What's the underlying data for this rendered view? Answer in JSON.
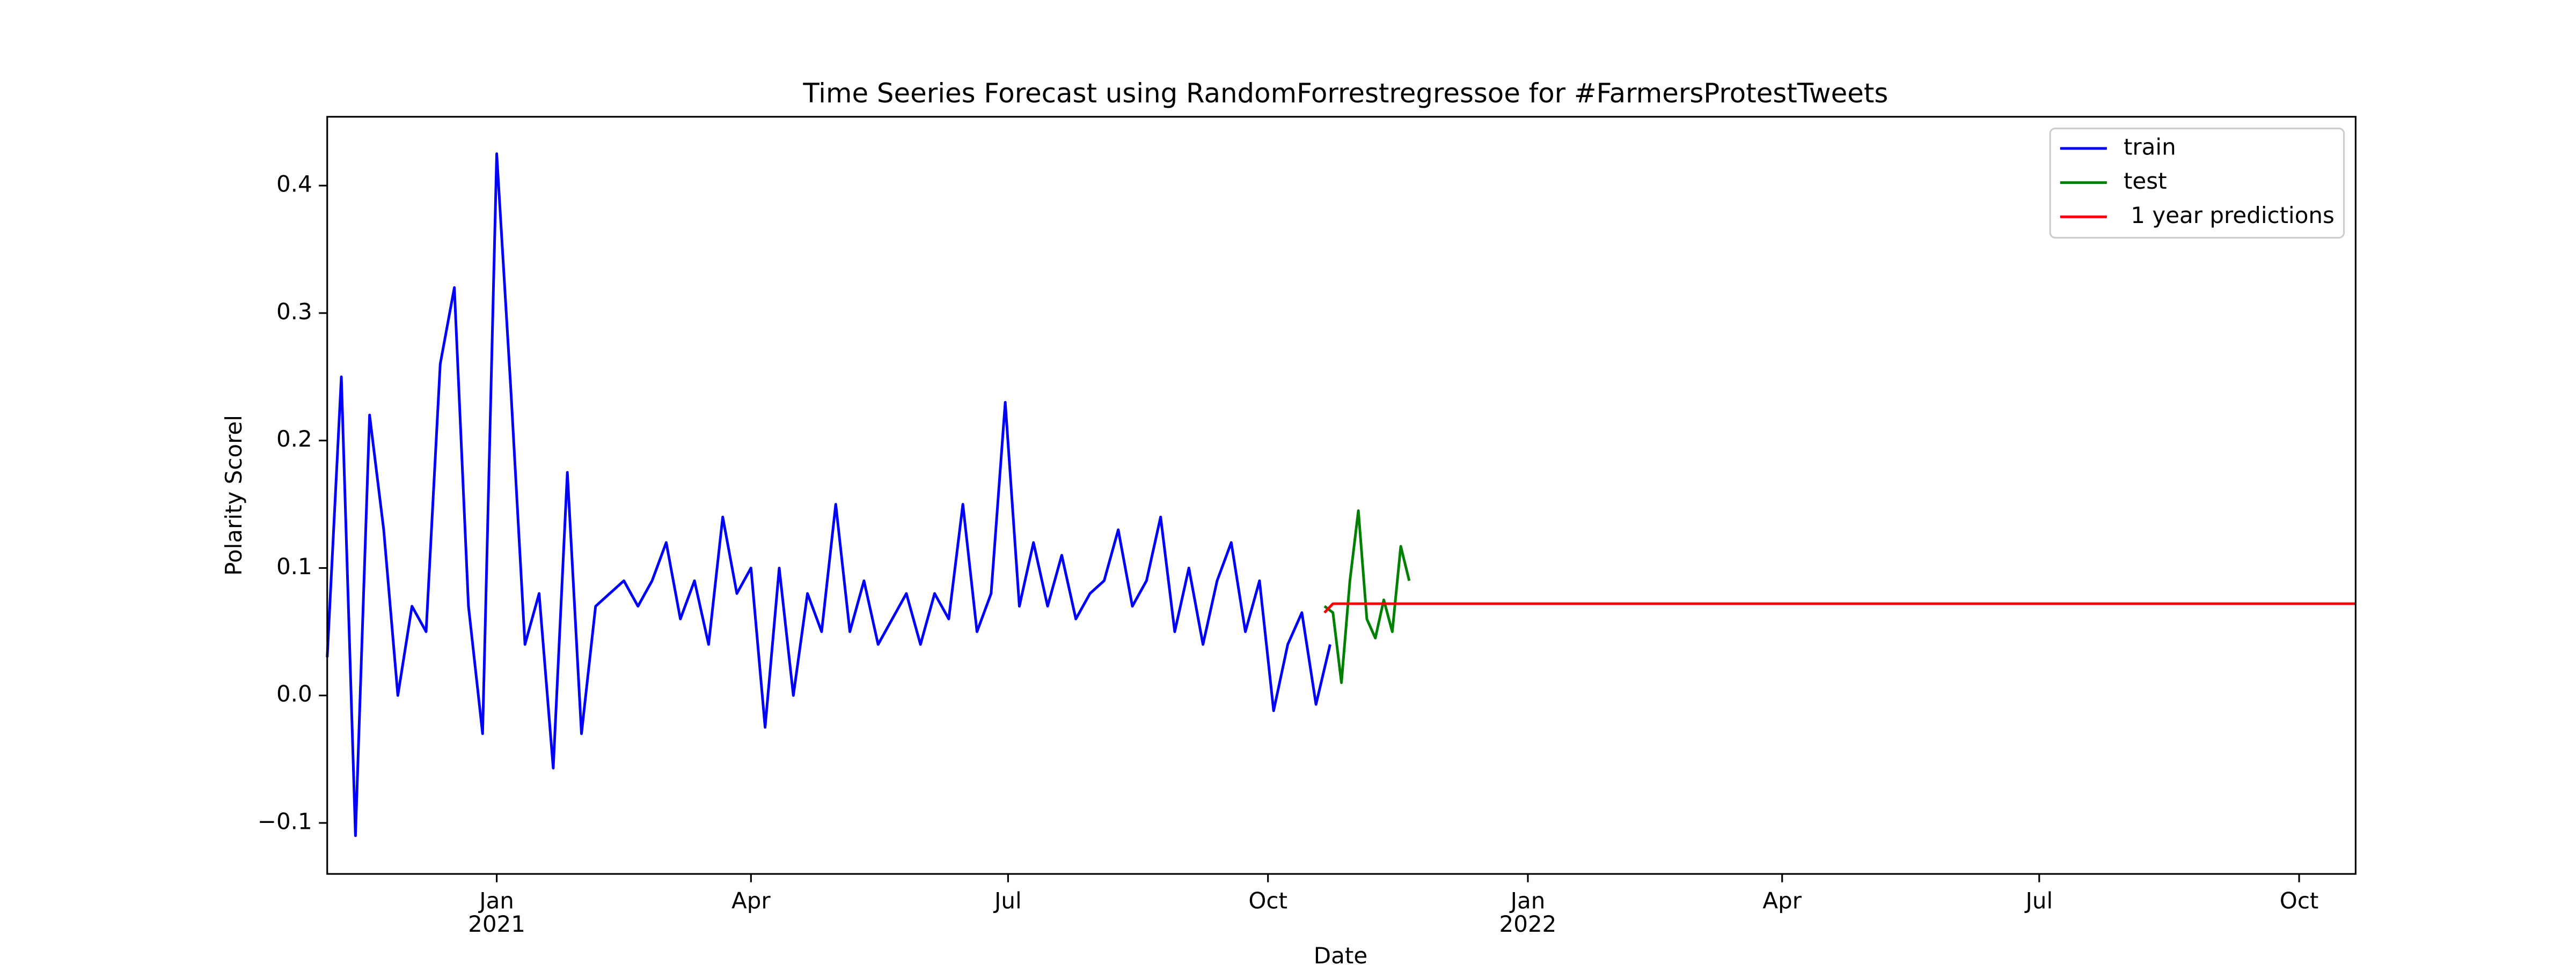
{
  "chart_data": {
    "type": "line",
    "title": "Time Seeries Forecast using RandomForrestregressoe for #FarmersProtestTweets",
    "x_label": "Date",
    "y_label": "Polarity Scorel",
    "xlim": [
      "2020-11-02",
      "2022-10-21"
    ],
    "ylim": [
      -0.14,
      0.454
    ],
    "xticks": [
      {
        "value": "2021-01-01",
        "label": "Jan",
        "sublabel": "2021"
      },
      {
        "value": "2021-04-01",
        "label": "Apr"
      },
      {
        "value": "2021-07-01",
        "label": "Jul"
      },
      {
        "value": "2021-10-01",
        "label": "Oct"
      },
      {
        "value": "2022-01-01",
        "label": "Jan",
        "sublabel": "2022"
      },
      {
        "value": "2022-04-01",
        "label": "Apr"
      },
      {
        "value": "2022-07-01",
        "label": "Jul"
      },
      {
        "value": "2022-10-01",
        "label": "Oct"
      }
    ],
    "yticks": [
      {
        "value": -0.1,
        "label": "−0.1"
      },
      {
        "value": 0,
        "label": "0.0"
      },
      0.1,
      0.2,
      0.3,
      0.4
    ],
    "legend": "upper right",
    "series": [
      {
        "name": "train",
        "color": "#0000ff",
        "x": [
          "2020-11-02",
          "2020-11-07",
          "2020-11-12",
          "2020-11-17",
          "2020-11-22",
          "2020-11-27",
          "2020-12-02",
          "2020-12-07",
          "2020-12-12",
          "2020-12-17",
          "2020-12-22",
          "2020-12-27",
          "2021-01-01",
          "2021-01-06",
          "2021-01-11",
          "2021-01-16",
          "2021-01-21",
          "2021-01-26",
          "2021-01-31",
          "2021-02-05",
          "2021-02-10",
          "2021-02-15",
          "2021-02-20",
          "2021-02-25",
          "2021-03-02",
          "2021-03-07",
          "2021-03-12",
          "2021-03-17",
          "2021-03-22",
          "2021-03-27",
          "2021-04-01",
          "2021-04-06",
          "2021-04-11",
          "2021-04-16",
          "2021-04-21",
          "2021-04-26",
          "2021-05-01",
          "2021-05-06",
          "2021-05-11",
          "2021-05-16",
          "2021-05-21",
          "2021-05-26",
          "2021-05-31",
          "2021-06-05",
          "2021-06-10",
          "2021-06-15",
          "2021-06-20",
          "2021-06-25",
          "2021-06-30",
          "2021-07-05",
          "2021-07-10",
          "2021-07-15",
          "2021-07-20",
          "2021-07-25",
          "2021-07-30",
          "2021-08-04",
          "2021-08-09",
          "2021-08-14",
          "2021-08-19",
          "2021-08-24",
          "2021-08-29",
          "2021-09-03",
          "2021-09-08",
          "2021-09-13",
          "2021-09-18",
          "2021-09-23",
          "2021-09-28",
          "2021-10-03",
          "2021-10-08",
          "2021-10-13",
          "2021-10-18",
          "2021-10-23"
        ],
        "values": [
          0.03,
          0.25,
          -0.11,
          0.22,
          0.13,
          0.0,
          0.07,
          0.05,
          0.26,
          0.32,
          0.07,
          -0.03,
          0.425,
          0.24,
          0.04,
          0.08,
          -0.057,
          0.175,
          -0.03,
          0.07,
          0.08,
          0.09,
          0.07,
          0.09,
          0.12,
          0.06,
          0.09,
          0.04,
          0.14,
          0.08,
          0.1,
          -0.025,
          0.1,
          0.0,
          0.08,
          0.05,
          0.15,
          0.05,
          0.09,
          0.04,
          0.06,
          0.08,
          0.04,
          0.08,
          0.06,
          0.15,
          0.05,
          0.08,
          0.23,
          0.07,
          0.12,
          0.07,
          0.11,
          0.06,
          0.08,
          0.09,
          0.13,
          0.07,
          0.09,
          0.14,
          0.05,
          0.1,
          0.04,
          0.09,
          0.12,
          0.05,
          0.09,
          -0.012,
          0.04,
          0.065,
          -0.007,
          0.04
        ]
      },
      {
        "name": "test",
        "color": "#008000",
        "x": [
          "2021-10-21",
          "2021-10-24",
          "2021-10-27",
          "2021-10-30",
          "2021-11-02",
          "2021-11-05",
          "2021-11-08",
          "2021-11-11",
          "2021-11-14",
          "2021-11-17",
          "2021-11-20"
        ],
        "values": [
          0.07,
          0.065,
          0.01,
          0.09,
          0.145,
          0.06,
          0.045,
          0.075,
          0.05,
          0.117,
          0.09
        ]
      },
      {
        "name": " 1 year predictions",
        "color": "#ff0000",
        "x": [
          "2021-10-21",
          "2021-10-24",
          "2022-10-21"
        ],
        "values": [
          0.065,
          0.072,
          0.072
        ]
      }
    ]
  }
}
